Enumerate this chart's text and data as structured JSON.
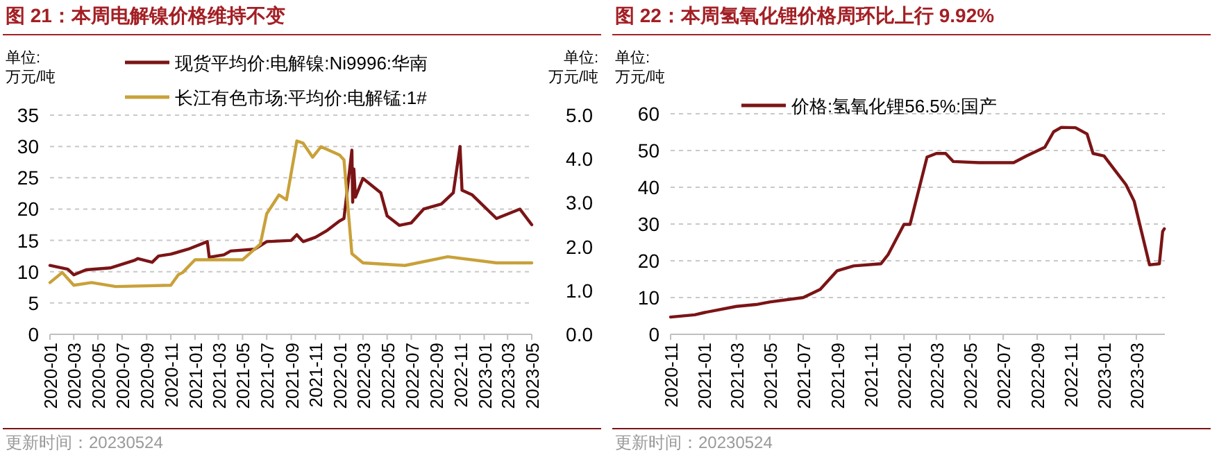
{
  "chart_data": [
    {
      "type": "line",
      "title": "图 21：本周电解镍价格维持不变",
      "ylabel": "单位:\n万元/吨",
      "y2label": "单位:\n万元/吨",
      "legend": "top",
      "grid": "y",
      "xlim": [
        "2020-01",
        "2023-05"
      ],
      "xticks": [
        "2020-01",
        "2020-03",
        "2020-05",
        "2020-07",
        "2020-09",
        "2020-11",
        "2021-01",
        "2021-03",
        "2021-05",
        "2021-07",
        "2021-09",
        "2021-11",
        "2022-01",
        "2022-03",
        "2022-05",
        "2022-07",
        "2022-09",
        "2022-11",
        "2023-01",
        "2023-03",
        "2023-05"
      ],
      "ylim": [
        0,
        35
      ],
      "yticks": [
        0,
        5,
        10,
        15,
        20,
        25,
        30,
        35
      ],
      "y2lim": [
        0,
        5
      ],
      "y2ticks": [
        {
          "value": 0,
          "label": "0.0"
        },
        {
          "value": 1,
          "label": "1.0"
        },
        {
          "value": 2,
          "label": "2.0"
        },
        {
          "value": 3,
          "label": "3.0"
        },
        {
          "value": 4,
          "label": "4.0"
        },
        {
          "value": 5,
          "label": "5.0"
        }
      ],
      "series": [
        {
          "name": "现货平均价:电解镍:Ni9996:华南",
          "color": "#7b1416",
          "x": [
            "2020-01",
            "2020-02-15",
            "2020-03",
            "2020-04",
            "2020-06",
            "2020-08",
            "2020-08-10",
            "2020-09-15",
            "2020-10",
            "2020-11",
            "2020-12-15",
            "2021-02",
            "2021-02-06",
            "2021-03-15",
            "2021-04",
            "2021-06",
            "2021-07",
            "2021-09",
            "2021-09-15",
            "2021-10",
            "2021-11",
            "2021-12",
            "2022-01",
            "2022-01-12",
            "2022-02",
            "2022-02-03",
            "2022-02-06",
            "2022-02-10",
            "2022-03",
            "2022-04-15",
            "2022-05",
            "2022-06",
            "2022-07",
            "2022-08",
            "2022-09-15",
            "2022-10-15",
            "2022-11",
            "2022-11-06",
            "2022-12",
            "2023-02",
            "2023-04",
            "2023-05"
          ],
          "values": [
            11.0,
            10.4,
            9.5,
            10.3,
            10.6,
            11.8,
            12.1,
            11.5,
            12.5,
            12.8,
            13.6,
            14.8,
            12.3,
            12.7,
            13.3,
            13.6,
            14.8,
            15.0,
            15.9,
            14.8,
            15.5,
            16.6,
            18.1,
            18.5,
            29.4,
            21.1,
            26.4,
            21.9,
            24.9,
            22.6,
            18.9,
            17.4,
            17.8,
            20.0,
            20.8,
            22.6,
            30.0,
            23.0,
            22.3,
            18.5,
            20.0,
            17.5
          ]
        },
        {
          "name": "长江有色市场:平均价:电解锰:1#",
          "color": "#c9a13a",
          "axis": "y2",
          "x": [
            "2020-01",
            "2020-02",
            "2020-03",
            "2020-04-15",
            "2020-06-15",
            "2020-11",
            "2020-11-20",
            "2020-12",
            "2021-01",
            "2021-05",
            "2021-06-15",
            "2021-07",
            "2021-08",
            "2021-08-20",
            "2021-09-15",
            "2021-10",
            "2021-10-25",
            "2021-11-15",
            "2022-01",
            "2022-01-12",
            "2022-02",
            "2022-03",
            "2022-06-15",
            "2022-10",
            "2023-02",
            "2023-05"
          ],
          "values": [
            1.18,
            1.41,
            1.12,
            1.18,
            1.09,
            1.12,
            1.36,
            1.41,
            1.7,
            1.7,
            2.06,
            2.75,
            3.18,
            3.07,
            4.41,
            4.36,
            4.04,
            4.28,
            4.09,
            3.98,
            1.84,
            1.63,
            1.57,
            1.77,
            1.63,
            1.63
          ]
        }
      ],
      "annotations": [
        "更新时间：20230524"
      ]
    },
    {
      "type": "line",
      "title": "图 22：本周氢氧化锂价格周环比上行 9.92%",
      "ylabel": "单位:\n万元/吨",
      "legend": "top",
      "grid": "y",
      "xlim": [
        "2020-11",
        "2023-04-22"
      ],
      "xticks": [
        "2020-11",
        "2021-01",
        "2021-03",
        "2021-05",
        "2021-07",
        "2021-09",
        "2021-11",
        "2022-01",
        "2022-03",
        "2022-05",
        "2022-07",
        "2022-09",
        "2022-11",
        "2023-01",
        "2023-03"
      ],
      "ylim": [
        0,
        60
      ],
      "yticks": [
        0,
        10,
        20,
        30,
        40,
        50,
        60
      ],
      "series": [
        {
          "name": "价格:氢氧化锂56.5%:国产",
          "color": "#7b1416",
          "x": [
            "2020-11",
            "2020-12-15",
            "2021-01",
            "2021-03",
            "2021-04-06",
            "2021-05",
            "2021-07",
            "2021-08",
            "2021-09",
            "2021-10",
            "2021-11-20",
            "2021-12-03",
            "2022-01",
            "2022-01-12",
            "2022-02-12",
            "2022-03",
            "2022-03-18",
            "2022-04",
            "2022-05-18",
            "2022-07-20",
            "2022-08-12",
            "2022-09-15",
            "2022-10",
            "2022-10-15",
            "2022-11-10",
            "2022-12",
            "2022-12-12",
            "2023-01",
            "2023-02-10",
            "2023-02-25",
            "2023-03-25",
            "2023-04-12",
            "2023-04-18",
            "2023-04-21"
          ],
          "values": [
            4.7,
            5.3,
            5.9,
            7.6,
            8.1,
            8.8,
            10.0,
            12.2,
            17.3,
            18.6,
            19.2,
            21.7,
            29.9,
            29.9,
            48.2,
            49.2,
            49.2,
            47.0,
            46.7,
            46.7,
            48.5,
            50.9,
            55.1,
            56.3,
            56.2,
            54.5,
            49.2,
            48.5,
            40.7,
            36.2,
            18.9,
            19.2,
            28.0,
            28.7
          ]
        }
      ],
      "annotations": [
        "更新时间：20230524"
      ]
    }
  ]
}
